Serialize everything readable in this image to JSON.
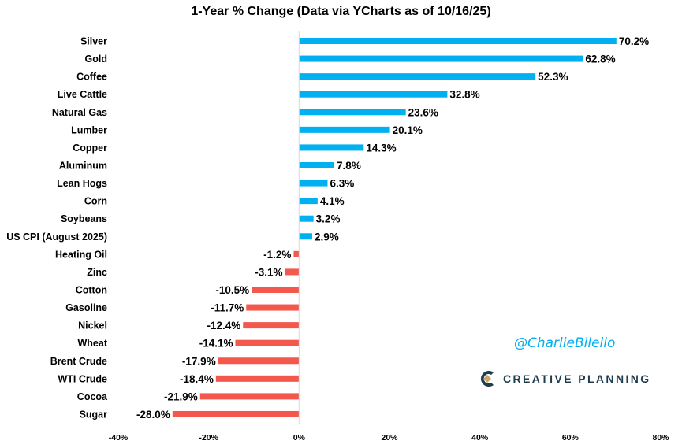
{
  "chart_data": {
    "type": "bar",
    "orientation": "horizontal",
    "title": "1-Year % Change (Data via YCharts as of 10/16/25)",
    "categories": [
      "Silver",
      "Gold",
      "Coffee",
      "Live Cattle",
      "Natural Gas",
      "Lumber",
      "Copper",
      "Aluminum",
      "Lean Hogs",
      "Corn",
      "Soybeans",
      "US CPI (August 2025)",
      "Heating Oil",
      "Zinc",
      "Cotton",
      "Gasoline",
      "Nickel",
      "Wheat",
      "Brent Crude",
      "WTI Crude",
      "Cocoa",
      "Sugar"
    ],
    "values": [
      70.2,
      62.8,
      52.3,
      32.8,
      23.6,
      20.1,
      14.3,
      7.8,
      6.3,
      4.1,
      3.2,
      2.9,
      -1.2,
      -3.1,
      -10.5,
      -11.7,
      -12.4,
      -14.1,
      -17.9,
      -18.4,
      -21.9,
      -28.0
    ],
    "data_labels": [
      "70.2%",
      "62.8%",
      "52.3%",
      "32.8%",
      "23.6%",
      "20.1%",
      "14.3%",
      "7.8%",
      "6.3%",
      "4.1%",
      "3.2%",
      "2.9%",
      "-1.2%",
      "-3.1%",
      "-10.5%",
      "-11.7%",
      "-12.4%",
      "-14.1%",
      "-17.9%",
      "-18.4%",
      "-21.9%",
      "-28.0%"
    ],
    "xlim": [
      -40,
      80
    ],
    "x_ticks": [
      "-40%",
      "-20%",
      "0%",
      "20%",
      "40%",
      "60%",
      "80%"
    ],
    "x_tick_values": [
      -40,
      -20,
      0,
      20,
      40,
      60,
      80
    ],
    "grid": false,
    "colors": {
      "positive": "#00B0F0",
      "negative": "#F4574B"
    }
  },
  "watermark": {
    "handle": "@CharlieBilello",
    "logo": "CREATIVE PLANNING"
  }
}
